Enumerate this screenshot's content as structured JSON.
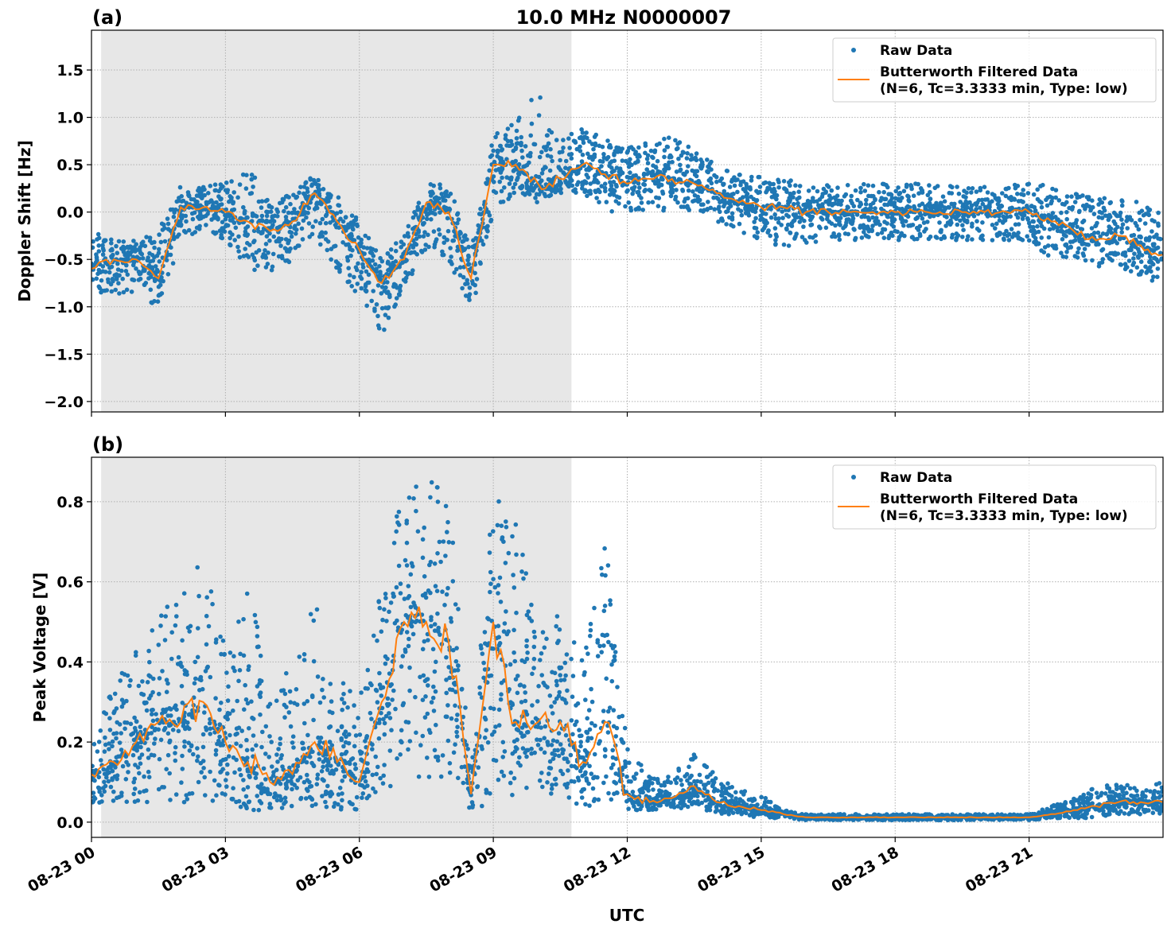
{
  "chart_data": [
    {
      "type": "scatter",
      "panel_label": "(a)",
      "title": "10.0 MHz N0000007",
      "xlabel": "",
      "ylabel": "Doppler Shift [Hz]",
      "ylim": [
        -2.11,
        1.92
      ],
      "xlim": [
        "08-23 00:00",
        "08-23 23:59"
      ],
      "yticks": [
        "1.5",
        "1.0",
        "0.5",
        "0.0",
        "−0.5",
        "−1.0",
        "−1.5",
        "−2.0"
      ],
      "ytick_values": [
        1.5,
        1.0,
        0.5,
        0.0,
        -0.5,
        -1.0,
        -1.5,
        -2.0
      ],
      "grid": true,
      "shaded_interval": [
        "08-23 00:13",
        "08-23 10:45"
      ],
      "legend_position": "top-right",
      "legend": [
        "Raw Data",
        "Butterworth Filtered Data",
        "(N=6, Tc=3.3333 min, Type: low)"
      ],
      "x": [
        "00:00",
        "00:30",
        "01:00",
        "01:30",
        "02:00",
        "02:30",
        "03:00",
        "03:30",
        "04:00",
        "04:30",
        "05:00",
        "05:30",
        "06:00",
        "06:30",
        "07:00",
        "07:30",
        "08:00",
        "08:30",
        "09:00",
        "09:30",
        "10:00",
        "10:30",
        "11:00",
        "11:30",
        "12:00",
        "12:30",
        "13:00",
        "13:30",
        "14:00",
        "14:30",
        "15:00",
        "15:30",
        "16:00",
        "16:30",
        "17:00",
        "17:30",
        "18:00",
        "18:30",
        "19:00",
        "19:30",
        "20:00",
        "20:30",
        "21:00",
        "21:30",
        "22:00",
        "22:30",
        "23:00",
        "23:30",
        "23:59"
      ],
      "series": [
        {
          "name": "Butterworth Filtered Data",
          "values": [
            -0.6,
            -0.5,
            -0.5,
            -0.7,
            0.05,
            0.05,
            0.0,
            -0.1,
            -0.2,
            -0.1,
            0.2,
            -0.1,
            -0.4,
            -0.75,
            -0.5,
            0.1,
            0.0,
            -0.7,
            0.5,
            0.5,
            0.3,
            0.35,
            0.5,
            0.4,
            0.3,
            0.35,
            0.35,
            0.3,
            0.2,
            0.1,
            0.05,
            0.05,
            0.0,
            0.0,
            0.0,
            0.0,
            0.0,
            0.0,
            0.0,
            0.0,
            0.0,
            0.0,
            0.0,
            -0.1,
            -0.2,
            -0.3,
            -0.25,
            -0.35,
            -0.45
          ]
        },
        {
          "name": "Raw Data",
          "range_low": [
            -0.9,
            -0.85,
            -0.9,
            -1.1,
            -0.3,
            -0.2,
            -0.3,
            -0.6,
            -0.7,
            -0.5,
            -0.3,
            -0.6,
            -0.9,
            -1.3,
            -0.8,
            -0.4,
            -0.5,
            -1.1,
            0.0,
            0.2,
            0.1,
            0.2,
            0.2,
            0.0,
            0.0,
            0.0,
            0.0,
            0.0,
            -0.1,
            -0.2,
            -0.3,
            -0.45,
            -0.35,
            -0.3,
            -0.3,
            -0.3,
            -0.3,
            -0.3,
            -0.3,
            -0.3,
            -0.3,
            -0.3,
            -0.3,
            -0.5,
            -0.5,
            -0.6,
            -0.6,
            -0.7,
            -0.8
          ],
          "range_high": [
            -0.2,
            -0.3,
            -0.3,
            -0.2,
            0.3,
            0.3,
            0.3,
            0.5,
            0.1,
            0.2,
            0.4,
            0.2,
            -0.1,
            -0.5,
            -0.2,
            0.3,
            0.3,
            -0.4,
            0.8,
            1.0,
            1.3,
            0.8,
            0.9,
            0.8,
            0.7,
            0.8,
            0.8,
            0.7,
            0.5,
            0.4,
            0.4,
            0.35,
            0.3,
            0.3,
            0.3,
            0.3,
            0.3,
            0.3,
            0.3,
            0.3,
            0.3,
            0.3,
            0.3,
            0.3,
            0.2,
            0.15,
            0.2,
            0.1,
            0.0
          ]
        }
      ]
    },
    {
      "type": "scatter",
      "panel_label": "(b)",
      "xlabel": "UTC",
      "ylabel": "Peak Voltage [V]",
      "ylim": [
        -0.038,
        0.911
      ],
      "xlim": [
        "08-23 00:00",
        "08-23 23:59"
      ],
      "yticks": [
        "0.8",
        "0.6",
        "0.4",
        "0.2",
        "0.0"
      ],
      "ytick_values": [
        0.8,
        0.6,
        0.4,
        0.2,
        0.0
      ],
      "xticks": [
        "08-23 00",
        "08-23 03",
        "08-23 06",
        "08-23 09",
        "08-23 12",
        "08-23 15",
        "08-23 18",
        "08-23 21"
      ],
      "xtick_hours": [
        0,
        3,
        6,
        9,
        12,
        15,
        18,
        21
      ],
      "grid": true,
      "shaded_interval": [
        "08-23 00:13",
        "08-23 10:45"
      ],
      "legend_position": "top-right",
      "legend": [
        "Raw Data",
        "Butterworth Filtered Data",
        "(N=6, Tc=3.3333 min, Type: low)"
      ],
      "x": [
        "00:00",
        "00:30",
        "01:00",
        "01:30",
        "02:00",
        "02:30",
        "03:00",
        "03:30",
        "04:00",
        "04:30",
        "05:00",
        "05:30",
        "06:00",
        "06:30",
        "07:00",
        "07:30",
        "08:00",
        "08:30",
        "09:00",
        "09:30",
        "10:00",
        "10:30",
        "11:00",
        "11:30",
        "12:00",
        "12:30",
        "13:00",
        "13:30",
        "14:00",
        "14:30",
        "15:00",
        "15:30",
        "16:00",
        "16:30",
        "17:00",
        "17:30",
        "18:00",
        "18:30",
        "19:00",
        "19:30",
        "20:00",
        "20:30",
        "21:00",
        "21:30",
        "22:00",
        "22:30",
        "23:00",
        "23:30",
        "23:59"
      ],
      "series": [
        {
          "name": "Butterworth Filtered Data",
          "values": [
            0.12,
            0.15,
            0.2,
            0.25,
            0.25,
            0.3,
            0.2,
            0.15,
            0.1,
            0.12,
            0.2,
            0.15,
            0.1,
            0.3,
            0.5,
            0.5,
            0.45,
            0.07,
            0.5,
            0.25,
            0.25,
            0.25,
            0.15,
            0.25,
            0.07,
            0.05,
            0.06,
            0.09,
            0.05,
            0.04,
            0.03,
            0.02,
            0.012,
            0.012,
            0.012,
            0.012,
            0.012,
            0.012,
            0.012,
            0.012,
            0.012,
            0.012,
            0.012,
            0.02,
            0.03,
            0.04,
            0.05,
            0.05,
            0.05
          ]
        },
        {
          "name": "Raw Data",
          "range_low": [
            0.03,
            0.05,
            0.05,
            0.05,
            0.05,
            0.05,
            0.05,
            0.03,
            0.03,
            0.03,
            0.04,
            0.03,
            0.03,
            0.08,
            0.1,
            0.1,
            0.1,
            0.03,
            0.03,
            0.05,
            0.08,
            0.05,
            0.03,
            0.05,
            0.03,
            0.03,
            0.03,
            0.04,
            0.02,
            0.02,
            0.01,
            0.01,
            0.005,
            0.005,
            0.005,
            0.005,
            0.005,
            0.005,
            0.005,
            0.005,
            0.005,
            0.005,
            0.005,
            0.01,
            0.01,
            0.01,
            0.02,
            0.02,
            0.02
          ],
          "range_high": [
            0.25,
            0.35,
            0.45,
            0.5,
            0.65,
            0.65,
            0.45,
            0.6,
            0.35,
            0.4,
            0.55,
            0.4,
            0.3,
            0.6,
            0.85,
            0.85,
            0.85,
            0.12,
            0.85,
            0.75,
            0.5,
            0.55,
            0.4,
            0.75,
            0.2,
            0.12,
            0.12,
            0.17,
            0.12,
            0.08,
            0.07,
            0.03,
            0.02,
            0.02,
            0.02,
            0.02,
            0.02,
            0.02,
            0.02,
            0.02,
            0.02,
            0.02,
            0.02,
            0.04,
            0.06,
            0.09,
            0.1,
            0.09,
            0.1
          ]
        }
      ]
    }
  ],
  "colors": {
    "raw": "#1f77b4",
    "filtered": "#ff7f0e",
    "shade": "#e7e7e7",
    "grid": "#b0b0b0"
  }
}
